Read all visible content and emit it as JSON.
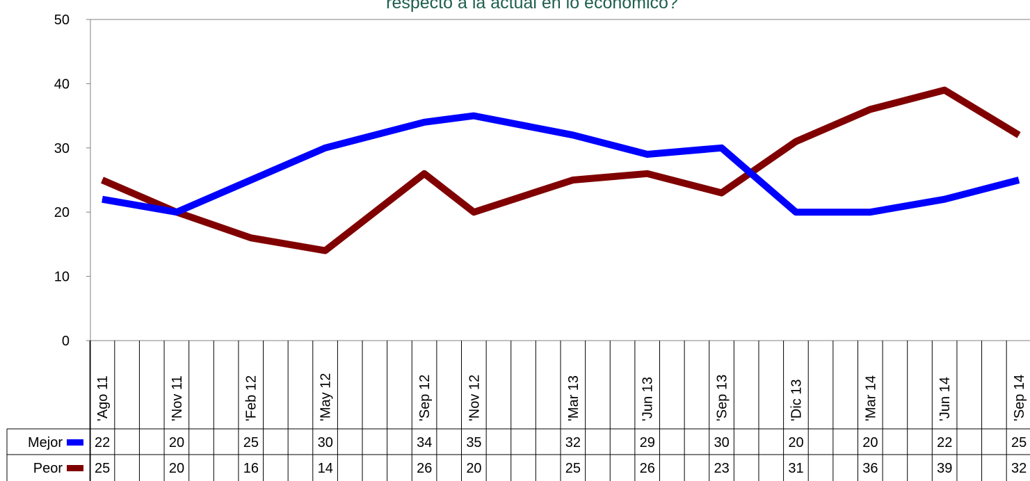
{
  "chart_data": {
    "type": "line",
    "title": "respecto a la actual en lo económico?",
    "categories": [
      "'Ago 11",
      "'Nov 11",
      "'Feb 12",
      "'May 12",
      "'Sep 12",
      "'Nov 12",
      "'Mar 13",
      "'Jun 13",
      "'Sep 13",
      "'Dic 13",
      "'Mar 14",
      "'Jun 14",
      "'Sep 14"
    ],
    "x_month_index": [
      0,
      3,
      6,
      9,
      13,
      15,
      19,
      22,
      25,
      28,
      31,
      34,
      37
    ],
    "series": [
      {
        "name": "Mejor",
        "color": "#0000ff",
        "values": [
          22,
          20,
          25,
          30,
          34,
          35,
          32,
          29,
          30,
          20,
          20,
          22,
          25
        ]
      },
      {
        "name": "Peor",
        "color": "#800000",
        "values": [
          25,
          20,
          16,
          14,
          26,
          20,
          25,
          26,
          23,
          31,
          36,
          39,
          32
        ]
      }
    ],
    "ylim": [
      0,
      50
    ],
    "yticks": [
      0,
      10,
      20,
      30,
      40,
      50
    ],
    "grid": false,
    "legend": "data-table"
  }
}
